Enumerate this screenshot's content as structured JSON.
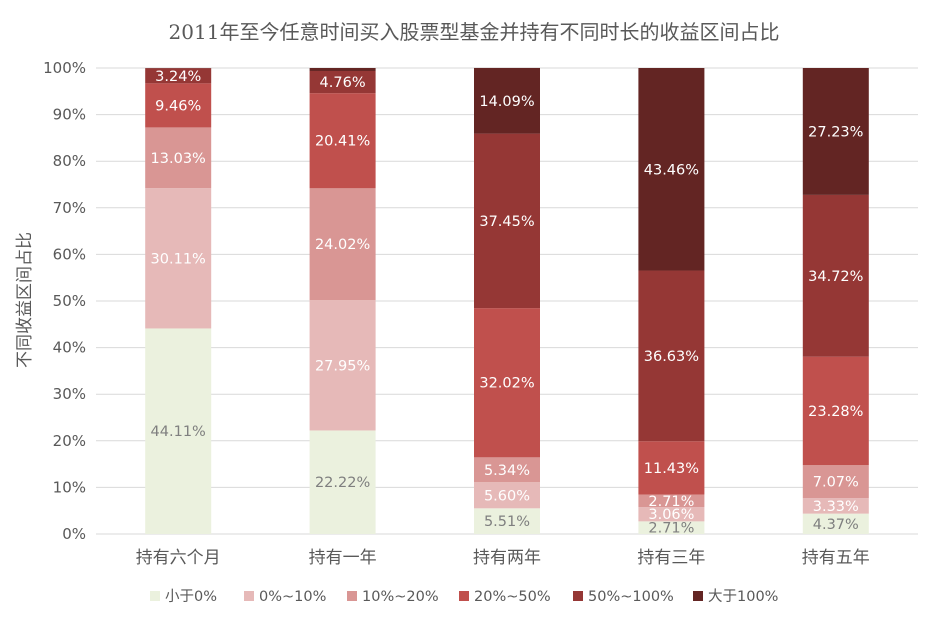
{
  "chart_data": {
    "type": "bar",
    "stacked": true,
    "title": "2011年至今任意时间买入股票型基金并持有不同时长的收益区间占比",
    "xlabel": "",
    "ylabel": "不同收益区间占比",
    "ylim": [
      0,
      100
    ],
    "yticks": [
      "0%",
      "10%",
      "20%",
      "30%",
      "40%",
      "50%",
      "60%",
      "70%",
      "80%",
      "90%",
      "100%"
    ],
    "grid": true,
    "legend_position": "bottom",
    "categories": [
      "持有六个月",
      "持有一年",
      "持有两年",
      "持有三年",
      "持有五年"
    ],
    "series": [
      {
        "name": "小于0%",
        "color": "#ebf1de",
        "label_color": "#7f7f7f",
        "values": [
          44.11,
          22.22,
          5.51,
          2.71,
          4.37
        ],
        "labels": [
          "44.11%",
          "22.22%",
          "5.51%",
          "2.71%",
          "4.37%"
        ]
      },
      {
        "name": "0%~10%",
        "color": "#e6b9b8",
        "label_color": "#ffffff",
        "values": [
          30.11,
          27.95,
          5.6,
          3.06,
          3.33
        ],
        "labels": [
          "30.11%",
          "27.95%",
          "5.60%",
          "3.06%",
          "3.33%"
        ]
      },
      {
        "name": "10%~20%",
        "color": "#d99694",
        "label_color": "#ffffff",
        "values": [
          13.03,
          24.02,
          5.34,
          2.71,
          7.07
        ],
        "labels": [
          "13.03%",
          "24.02%",
          "5.34%",
          "2.71%",
          "7.07%"
        ]
      },
      {
        "name": "20%~50%",
        "color": "#c0504d",
        "label_color": "#ffffff",
        "values": [
          9.46,
          20.41,
          32.02,
          11.43,
          23.28
        ],
        "labels": [
          "9.46%",
          "20.41%",
          "32.02%",
          "11.43%",
          "23.28%"
        ]
      },
      {
        "name": "50%~100%",
        "color": "#953735",
        "label_color": "#ffffff",
        "values": [
          3.24,
          4.76,
          37.45,
          36.63,
          34.72
        ],
        "labels": [
          "3.24%",
          "4.76%",
          "37.45%",
          "36.63%",
          "34.72%"
        ]
      },
      {
        "name": "大于100%",
        "color": "#632523",
        "label_color": "#ffffff",
        "values": [
          0.05,
          0.64,
          14.09,
          43.46,
          27.23
        ],
        "labels": [
          "",
          "",
          "14.09%",
          "43.46%",
          "27.23%"
        ]
      }
    ]
  }
}
